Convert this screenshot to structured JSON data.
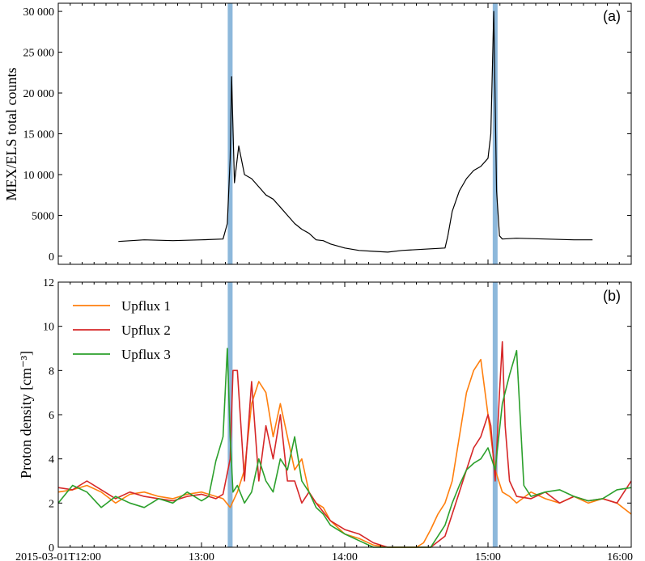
{
  "chart_data": [
    {
      "panel": "a",
      "type": "line",
      "panel_label": "(a)",
      "ylabel": "MEX/ELS total counts",
      "ylim": [
        -1000,
        31000
      ],
      "yticks": [
        0,
        5000,
        10000,
        15000,
        20000,
        25000,
        30000
      ],
      "ytick_labels": [
        "0",
        "5000",
        "10 000",
        "15 000",
        "20 000",
        "25 000",
        "30 000"
      ],
      "xlim_hours": [
        12,
        16
      ],
      "line_color": "#000000",
      "series": [
        {
          "x_hours": [
            12.42,
            12.6,
            12.8,
            13.0,
            13.15,
            13.18,
            13.2,
            13.21,
            13.23,
            13.26,
            13.3,
            13.35,
            13.4,
            13.45,
            13.5,
            13.55,
            13.6,
            13.65,
            13.7,
            13.75,
            13.8,
            13.85,
            13.9,
            14.0,
            14.1,
            14.2,
            14.3,
            14.4,
            14.5,
            14.6,
            14.7,
            14.72,
            14.75,
            14.8,
            14.85,
            14.9,
            14.95,
            15.0,
            15.02,
            15.04,
            15.06,
            15.08,
            15.1,
            15.2,
            15.4,
            15.6,
            15.73
          ],
          "values": [
            1800,
            2000,
            1900,
            2000,
            2100,
            4000,
            12000,
            22000,
            9000,
            13500,
            10000,
            9500,
            8500,
            7500,
            7000,
            6000,
            5000,
            4000,
            3300,
            2800,
            2000,
            1900,
            1500,
            1000,
            700,
            600,
            500,
            700,
            800,
            900,
            1000,
            2500,
            5500,
            8000,
            9500,
            10500,
            11000,
            12000,
            15000,
            30000,
            8000,
            2500,
            2100,
            2200,
            2100,
            2000,
            2000
          ]
        }
      ]
    },
    {
      "panel": "b",
      "type": "line",
      "panel_label": "(b)",
      "ylabel": "Proton density [cm⁻³]",
      "ylim": [
        0,
        12
      ],
      "yticks": [
        0,
        2,
        4,
        6,
        8,
        10,
        12
      ],
      "ytick_labels": [
        "0",
        "2",
        "4",
        "6",
        "8",
        "10",
        "12"
      ],
      "xlim_hours": [
        12,
        16
      ],
      "xticks_hours": [
        12,
        13,
        14,
        15,
        16
      ],
      "xtick_labels": [
        "2015-03-01T12:00",
        "13:00",
        "14:00",
        "15:00",
        "16:00"
      ],
      "legend_position": "top-left",
      "series": [
        {
          "name": "Upflux 1",
          "color": "#ff7f0e",
          "x_hours": [
            12.0,
            12.1,
            12.2,
            12.3,
            12.4,
            12.5,
            12.6,
            12.7,
            12.8,
            12.9,
            13.0,
            13.1,
            13.15,
            13.2,
            13.25,
            13.3,
            13.35,
            13.4,
            13.45,
            13.5,
            13.55,
            13.6,
            13.65,
            13.7,
            13.75,
            13.8,
            13.85,
            13.9,
            14.0,
            14.1,
            14.2,
            14.3,
            14.4,
            14.5,
            14.55,
            14.6,
            14.65,
            14.7,
            14.75,
            14.8,
            14.85,
            14.9,
            14.95,
            15.0,
            15.05,
            15.1,
            15.15,
            15.2,
            15.3,
            15.4,
            15.5,
            15.6,
            15.7,
            15.8,
            15.9,
            16.0
          ],
          "values": [
            2.5,
            2.6,
            2.8,
            2.5,
            2.0,
            2.4,
            2.5,
            2.3,
            2.2,
            2.4,
            2.5,
            2.3,
            2.2,
            1.8,
            2.5,
            3.5,
            6.5,
            7.5,
            7.0,
            5.0,
            6.5,
            5.0,
            3.5,
            4.0,
            2.5,
            2.0,
            1.8,
            1.2,
            0.6,
            0.4,
            0.1,
            0.0,
            0.0,
            0.0,
            0.2,
            0.8,
            1.5,
            2.0,
            3.0,
            5.0,
            7.0,
            8.0,
            8.5,
            6.0,
            3.5,
            2.5,
            2.3,
            2.0,
            2.5,
            2.2,
            2.0,
            2.3,
            2.0,
            2.2,
            2.0,
            1.5
          ]
        },
        {
          "name": "Upflux 2",
          "color": "#d62728",
          "x_hours": [
            12.0,
            12.1,
            12.2,
            12.3,
            12.4,
            12.5,
            12.6,
            12.7,
            12.8,
            12.9,
            13.0,
            13.1,
            13.15,
            13.2,
            13.22,
            13.25,
            13.3,
            13.35,
            13.4,
            13.45,
            13.5,
            13.55,
            13.6,
            13.65,
            13.7,
            13.75,
            13.8,
            13.85,
            13.9,
            14.0,
            14.1,
            14.2,
            14.3,
            14.4,
            14.5,
            14.6,
            14.7,
            14.75,
            14.8,
            14.85,
            14.9,
            14.95,
            15.0,
            15.02,
            15.05,
            15.08,
            15.1,
            15.12,
            15.15,
            15.2,
            15.3,
            15.4,
            15.5,
            15.6,
            15.7,
            15.8,
            15.9,
            16.0
          ],
          "values": [
            2.7,
            2.6,
            3.0,
            2.6,
            2.2,
            2.5,
            2.3,
            2.2,
            2.1,
            2.3,
            2.4,
            2.2,
            2.4,
            4.0,
            8.0,
            8.0,
            3.0,
            7.5,
            3.0,
            5.5,
            4.0,
            6.0,
            3.0,
            3.0,
            2.0,
            2.5,
            2.0,
            1.6,
            1.2,
            0.8,
            0.6,
            0.2,
            0.0,
            0.0,
            0.0,
            0.0,
            0.5,
            1.5,
            2.5,
            3.5,
            4.5,
            5.0,
            6.0,
            5.5,
            3.0,
            7.0,
            9.3,
            5.5,
            3.0,
            2.3,
            2.2,
            2.5,
            2.0,
            2.3,
            2.1,
            2.2,
            2.0,
            3.0
          ]
        },
        {
          "name": "Upflux 3",
          "color": "#2ca02c",
          "x_hours": [
            12.0,
            12.1,
            12.2,
            12.3,
            12.4,
            12.5,
            12.6,
            12.7,
            12.8,
            12.9,
            13.0,
            13.05,
            13.1,
            13.15,
            13.18,
            13.2,
            13.22,
            13.25,
            13.3,
            13.35,
            13.4,
            13.45,
            13.5,
            13.55,
            13.6,
            13.65,
            13.7,
            13.75,
            13.8,
            13.85,
            13.9,
            14.0,
            14.1,
            14.2,
            14.3,
            14.4,
            14.5,
            14.6,
            14.65,
            14.7,
            14.75,
            14.8,
            14.85,
            14.9,
            14.95,
            15.0,
            15.05,
            15.1,
            15.15,
            15.2,
            15.25,
            15.3,
            15.4,
            15.5,
            15.6,
            15.7,
            15.8,
            15.9,
            16.0
          ],
          "values": [
            2.0,
            2.8,
            2.5,
            1.8,
            2.3,
            2.0,
            1.8,
            2.2,
            2.0,
            2.5,
            2.1,
            2.3,
            3.9,
            5.0,
            9.0,
            5.0,
            2.5,
            2.8,
            2.0,
            2.5,
            4.0,
            3.0,
            2.5,
            4.0,
            3.5,
            5.0,
            3.0,
            2.5,
            1.8,
            1.5,
            1.0,
            0.6,
            0.3,
            0.0,
            0.0,
            0.0,
            0.0,
            0.0,
            0.5,
            1.0,
            2.0,
            2.8,
            3.5,
            3.8,
            4.0,
            4.5,
            3.5,
            6.5,
            7.8,
            8.9,
            2.8,
            2.3,
            2.5,
            2.6,
            2.3,
            2.1,
            2.2,
            2.6,
            2.7
          ]
        }
      ]
    }
  ],
  "highlight_times_hours": [
    13.2,
    15.05
  ],
  "highlight_color": "#8db8db"
}
